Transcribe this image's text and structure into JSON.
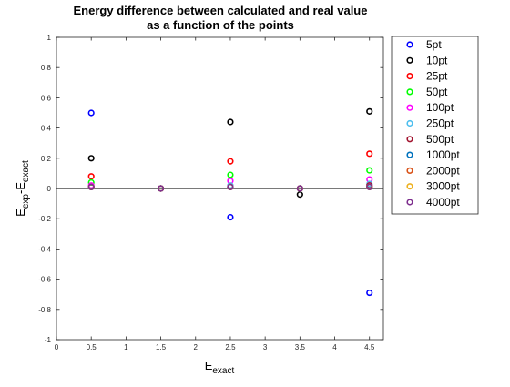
{
  "chart_data": {
    "type": "scatter",
    "title_lines": [
      "Energy difference between calculated and real value",
      "as a function of the points"
    ],
    "xlabel": {
      "main": "E",
      "sub": "exact"
    },
    "ylabel": {
      "main": "E",
      "sub1": "exp",
      "mid": "-E",
      "sub2": "exact"
    },
    "xlim": [
      0,
      4.7
    ],
    "ylim": [
      -1,
      1
    ],
    "x_ticks": [
      0,
      0.5,
      1,
      1.5,
      2,
      2.5,
      3,
      3.5,
      4,
      4.5
    ],
    "x_tick_labels": [
      "0",
      "0.5",
      "1",
      "1.5",
      "2",
      "2.5",
      "3",
      "3.5",
      "4",
      "4.5"
    ],
    "y_ticks": [
      -1,
      -0.8,
      -0.6,
      -0.4,
      -0.2,
      0,
      0.2,
      0.4,
      0.6,
      0.8,
      1
    ],
    "y_tick_labels": [
      "-1",
      "-0.8",
      "-0.6",
      "-0.4",
      "-0.2",
      "0",
      "0.2",
      "0.4",
      "0.6",
      "0.8",
      "1"
    ],
    "x": [
      0.5,
      1.5,
      2.5,
      3.5,
      4.5
    ],
    "reference_line_y": 0,
    "grid": false,
    "legend_position": "outside-right",
    "series": [
      {
        "name": "5pt",
        "color": "#0000ff",
        "values": [
          0.5,
          0.0,
          -0.19,
          0.0,
          -0.69
        ]
      },
      {
        "name": "10pt",
        "color": "#000000",
        "values": [
          0.2,
          0.0,
          0.44,
          -0.04,
          0.51
        ]
      },
      {
        "name": "25pt",
        "color": "#ff0000",
        "values": [
          0.08,
          0.0,
          0.18,
          0.0,
          0.23
        ]
      },
      {
        "name": "50pt",
        "color": "#00ff00",
        "values": [
          0.04,
          0.0,
          0.09,
          0.0,
          0.12
        ]
      },
      {
        "name": "100pt",
        "color": "#ff00ff",
        "values": [
          0.02,
          0.0,
          0.05,
          0.0,
          0.06
        ]
      },
      {
        "name": "250pt",
        "color": "#4dbeee",
        "values": [
          0.01,
          0.0,
          0.02,
          0.0,
          0.03
        ]
      },
      {
        "name": "500pt",
        "color": "#a2142f",
        "values": [
          0.01,
          0.0,
          0.01,
          0.0,
          0.02
        ]
      },
      {
        "name": "1000pt",
        "color": "#0072bd",
        "values": [
          0.01,
          0.0,
          0.01,
          0.0,
          0.01
        ]
      },
      {
        "name": "2000pt",
        "color": "#d95319",
        "values": [
          0.01,
          0.0,
          0.01,
          0.0,
          0.01
        ]
      },
      {
        "name": "3000pt",
        "color": "#edb120",
        "values": [
          0.01,
          0.0,
          0.01,
          0.0,
          0.01
        ]
      },
      {
        "name": "4000pt",
        "color": "#7e2f8e",
        "values": [
          0.01,
          0.0,
          0.01,
          0.0,
          0.01
        ]
      }
    ]
  }
}
